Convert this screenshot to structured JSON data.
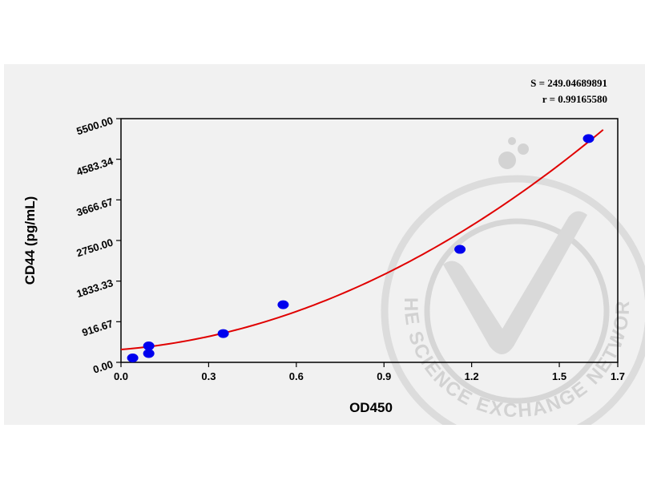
{
  "stats": {
    "s_text": "S = 249.04689891",
    "r_text": "r = 0.99165580"
  },
  "watermark": {
    "text": "THE SCIENCE EXCHANGE NETWORK",
    "color": "#d2d2d2",
    "icon": "checkmark-seal-icon"
  },
  "chart_data": {
    "type": "scatter",
    "xlabel": "OD450",
    "ylabel": "CD44 (pg/mL)",
    "xlim": [
      0.0,
      1.7
    ],
    "ylim": [
      0.0,
      5500.0
    ],
    "x_ticks": [
      "0.0",
      "0.3",
      "0.6",
      "0.9",
      "1.2",
      "1.5",
      "1.7"
    ],
    "x_tick_values": [
      0.0,
      0.3,
      0.6,
      0.9,
      1.2,
      1.5,
      1.7
    ],
    "y_ticks": [
      "0.00",
      "916.67",
      "1833.33",
      "2750.00",
      "3666.67",
      "4583.34",
      "5500.00"
    ],
    "y_tick_values": [
      0.0,
      916.67,
      1833.33,
      2750.0,
      3666.67,
      4583.34,
      5500.0
    ],
    "grid": false,
    "point_color": "#0000ee",
    "curve_color": "#e00000",
    "points": [
      {
        "x": 0.04,
        "y": 100
      },
      {
        "x": 0.095,
        "y": 200
      },
      {
        "x": 0.095,
        "y": 370
      },
      {
        "x": 0.35,
        "y": 650
      },
      {
        "x": 0.555,
        "y": 1300
      },
      {
        "x": 1.16,
        "y": 2550
      },
      {
        "x": 1.6,
        "y": 5050
      }
    ],
    "fit_curve": {
      "type": "polynomial",
      "coefficients": [
        290,
        530,
        1500
      ],
      "x_range": [
        0.0,
        1.65
      ]
    }
  }
}
